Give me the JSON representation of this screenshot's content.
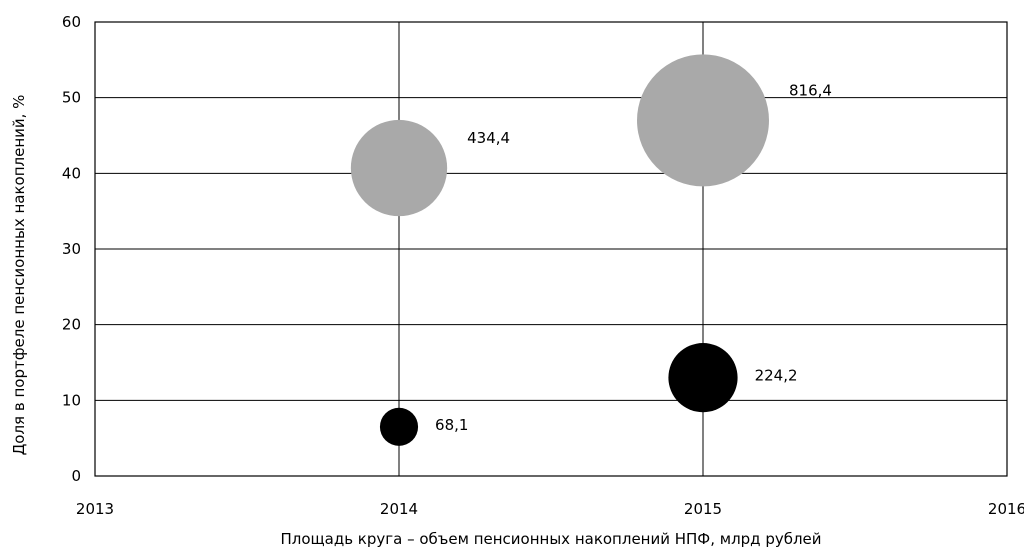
{
  "chart_data": {
    "type": "bubble",
    "xlabel": "Площадь круга – объем пенсионных накоплений НПФ, млрд рублей",
    "ylabel": "Доля в портфеле пенсионных накоплений, %",
    "xlim": [
      2013,
      2016
    ],
    "ylim": [
      0,
      60
    ],
    "x_ticks": [
      "2013",
      "2014",
      "2015",
      "2016"
    ],
    "y_ticks": [
      "0",
      "10",
      "20",
      "30",
      "40",
      "50",
      "60"
    ],
    "grid": true,
    "size_encoding": "area",
    "series": [
      {
        "color": "#a9a9a9",
        "points": [
          {
            "x": 2014,
            "y": 40.7,
            "size": 434.4,
            "label": "434,4"
          },
          {
            "x": 2015,
            "y": 47,
            "size": 816.4,
            "label": "816,4"
          }
        ]
      },
      {
        "color": "#000000",
        "points": [
          {
            "x": 2014,
            "y": 6.5,
            "size": 68.1,
            "label": "68,1"
          },
          {
            "x": 2015,
            "y": 13,
            "size": 224.2,
            "label": "224,2"
          }
        ]
      }
    ]
  }
}
